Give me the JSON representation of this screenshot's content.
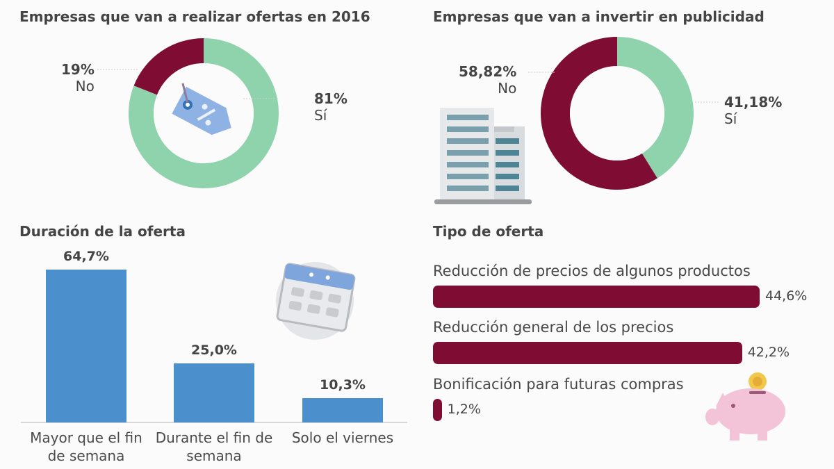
{
  "chart_data": [
    {
      "type": "pie",
      "title": "Empresas que van a realizar ofertas en 2016",
      "slices": [
        {
          "label": "Sí",
          "value": 81,
          "value_label": "81%",
          "color": "#8fd3ad"
        },
        {
          "label": "No",
          "value": 19,
          "value_label": "19%",
          "color": "#7e0c33"
        }
      ],
      "icon": "price-tag-icon"
    },
    {
      "type": "pie",
      "title": "Empresas que van a invertir en publicidad",
      "slices": [
        {
          "label": "Sí",
          "value": 41.18,
          "value_label": "41,18%",
          "color": "#8fd3ad"
        },
        {
          "label": "No",
          "value": 58.82,
          "value_label": "58,82%",
          "color": "#7e0c33"
        }
      ],
      "icon": "building-icon"
    },
    {
      "type": "bar",
      "title": "Duración de la oferta",
      "categories": [
        "Mayor que el fin de semana",
        "Durante el fin de semana",
        "Solo el viernes"
      ],
      "values": [
        64.7,
        25.0,
        10.3
      ],
      "value_labels": [
        "64,7%",
        "25,0%",
        "10,3%"
      ],
      "ylim": [
        0,
        64.7
      ],
      "color": "#4b8fcd",
      "icon": "calendar-icon"
    },
    {
      "type": "bar",
      "orientation": "horizontal",
      "title": "Tipo de oferta",
      "categories": [
        "Reducción de precios de algunos productos",
        "Reducción general de los precios",
        "Bonificación para futuras compras"
      ],
      "values": [
        44.6,
        42.2,
        1.2
      ],
      "value_labels": [
        "44,6%",
        "42,2%",
        "1,2%"
      ],
      "xlim": [
        0,
        44.6
      ],
      "color": "#7e0c33",
      "icon": "piggy-bank-icon"
    }
  ]
}
